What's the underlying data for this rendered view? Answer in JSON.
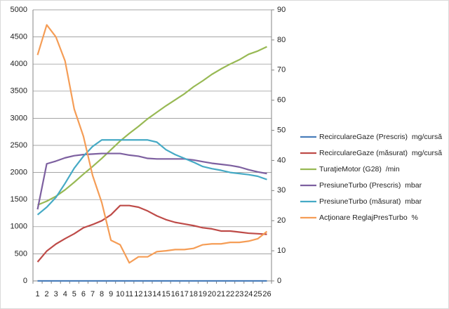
{
  "chart_data": {
    "type": "line",
    "categories": [
      "1",
      "2",
      "3",
      "4",
      "5",
      "6",
      "7",
      "8",
      "9",
      "10",
      "11",
      "12",
      "13",
      "14",
      "15",
      "16",
      "17",
      "18",
      "19",
      "20",
      "21",
      "22",
      "23",
      "24",
      "25",
      "26"
    ],
    "ylim": [
      0,
      5000
    ],
    "yticks": [
      0,
      500,
      1000,
      1500,
      2000,
      2500,
      3000,
      3500,
      4000,
      4500,
      5000
    ],
    "y2lim": [
      0,
      90
    ],
    "y2ticks": [
      0,
      10,
      20,
      30,
      40,
      50,
      60,
      70,
      80,
      90
    ],
    "grid": true,
    "legend": "right",
    "series": [
      {
        "name": "RecirculareGaze (Prescris)  mg/cursă",
        "color": "#4a7ebb",
        "values": [
          0,
          0,
          0,
          0,
          0,
          0,
          0,
          0,
          0,
          0,
          0,
          0,
          0,
          0,
          0,
          0,
          0,
          0,
          0,
          0,
          0,
          0,
          0,
          0,
          0,
          0
        ]
      },
      {
        "name": "RecirculareGaze (măsurat)  mg/cursă",
        "color": "#be4b48",
        "values": [
          350,
          550,
          680,
          780,
          870,
          980,
          1040,
          1110,
          1220,
          1390,
          1390,
          1360,
          1290,
          1200,
          1130,
          1080,
          1050,
          1020,
          980,
          960,
          920,
          920,
          900,
          880,
          870,
          860
        ]
      },
      {
        "name": "TuraţieMotor (G28)  /min",
        "color": "#98b954",
        "values": [
          1400,
          1470,
          1560,
          1680,
          1820,
          1970,
          2110,
          2260,
          2420,
          2580,
          2720,
          2850,
          2990,
          3110,
          3230,
          3340,
          3450,
          3580,
          3690,
          3810,
          3910,
          4000,
          4080,
          4180,
          4240,
          4320
        ]
      },
      {
        "name": "PresiuneTurbo (Prescris)  mbar",
        "color": "#7d60a0",
        "values": [
          1320,
          2160,
          2210,
          2270,
          2310,
          2330,
          2340,
          2350,
          2350,
          2350,
          2320,
          2300,
          2260,
          2250,
          2250,
          2250,
          2250,
          2230,
          2200,
          2170,
          2150,
          2130,
          2100,
          2050,
          2010,
          1980
        ]
      },
      {
        "name": "PresiuneTurbo (măsurat)  mbar",
        "color": "#46aac5",
        "values": [
          1220,
          1360,
          1540,
          1800,
          2080,
          2300,
          2480,
          2600,
          2600,
          2600,
          2600,
          2600,
          2600,
          2560,
          2420,
          2330,
          2260,
          2190,
          2110,
          2070,
          2040,
          2000,
          1980,
          1960,
          1930,
          1870
        ]
      },
      {
        "name": "Acţionare ReglajPresTurbo  %",
        "color": "#f59d56",
        "axis": "y2",
        "values": [
          75,
          85,
          81,
          73,
          57,
          48,
          35,
          26,
          13.5,
          12,
          6,
          8,
          8,
          9.7,
          10,
          10.4,
          10.4,
          10.8,
          12,
          12.3,
          12.3,
          12.8,
          12.8,
          13.2,
          14,
          16.4
        ]
      }
    ]
  }
}
